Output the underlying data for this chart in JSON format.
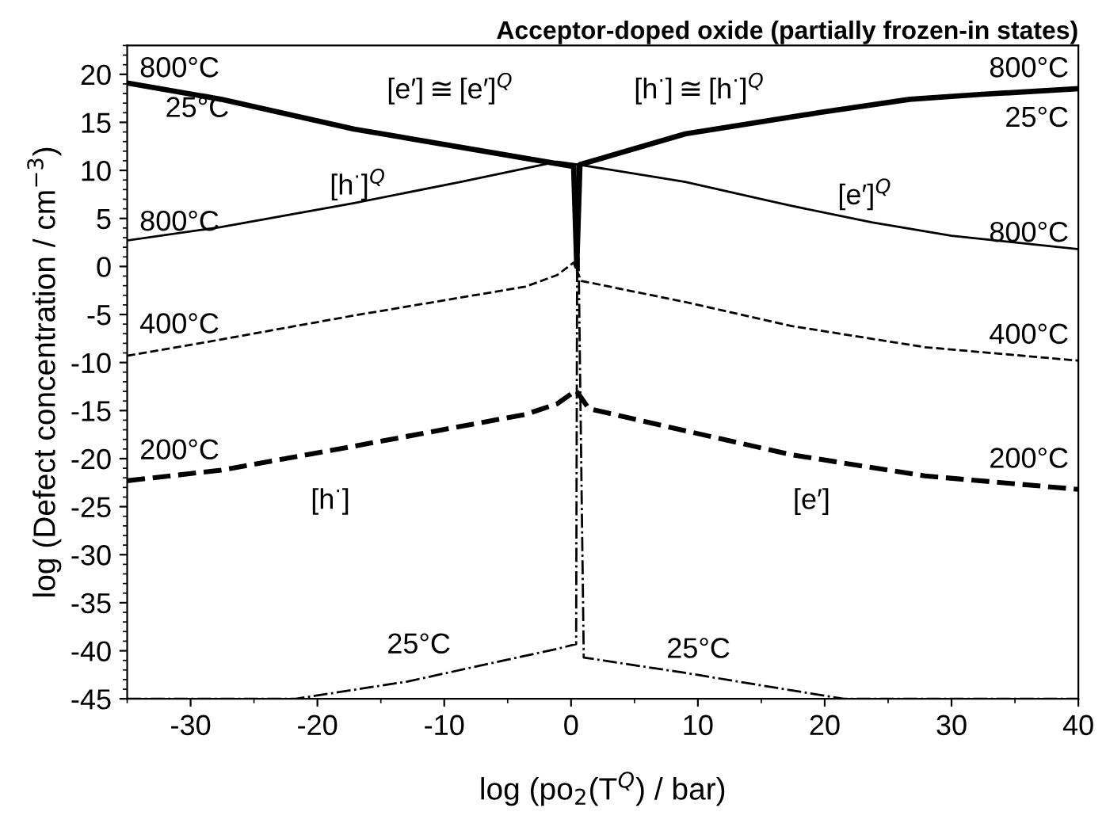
{
  "chart_data": {
    "type": "line",
    "title": "Acceptor-doped oxide (partially frozen-in states)",
    "xlabel": "log (po$_{2}$(T$^{Q}$) / bar)",
    "ylabel": "log (Defect concentration / cm$^{−3}$)",
    "xlim": [
      -35,
      40
    ],
    "ylim": [
      -45,
      23
    ],
    "xticks": [
      -30,
      -20,
      -10,
      0,
      10,
      20,
      30,
      40
    ],
    "yticks": [
      -45,
      -40,
      -35,
      -30,
      -25,
      -20,
      -15,
      -10,
      -5,
      0,
      5,
      10,
      15,
      20
    ],
    "grid": false,
    "legend": false,
    "marker": "none",
    "series": [
      {
        "color": "#000000",
        "line_style": "solid",
        "x": [
          -35,
          -27.6,
          -17.1,
          -1.1,
          0.2,
          0.45,
          0.7,
          9.0,
          19.5,
          26.7,
          32.2,
          40
        ],
        "values": [
          19.1,
          17.4,
          14.3,
          10.7,
          10.4,
          0,
          10.6,
          13.8,
          16.0,
          17.4,
          17.9,
          18.5
        ]
      },
      {
        "color": "#000000",
        "line_style": "solid",
        "x": [
          -35,
          -27.6,
          -17.1,
          -8.7,
          -1.1,
          0.6,
          9.0,
          17.4,
          23.7,
          30,
          40
        ],
        "values": [
          2.7,
          4.1,
          6.6,
          8.8,
          10.9,
          10.6,
          8.8,
          6.3,
          4.6,
          3.2,
          1.8
        ]
      },
      {
        "color": "#000000",
        "line_style": "dashed",
        "x": [
          -35,
          -27.6,
          -17.1,
          -3.6,
          -1.1,
          0.2,
          0.8,
          9.0,
          17.4,
          27.9,
          40
        ],
        "values": [
          -9.3,
          -7.6,
          -5.1,
          -2.1,
          -0.9,
          0.4,
          -1.5,
          -3.7,
          -6.2,
          -8.4,
          -9.8
        ]
      },
      {
        "color": "#000000",
        "line_style": "dashed",
        "x": [
          -35,
          -27.6,
          -17.1,
          -3.6,
          -1.1,
          0.4,
          1.4,
          9.0,
          17.4,
          27.9,
          40
        ],
        "values": [
          -22.3,
          -21.2,
          -18.7,
          -15.4,
          -14.3,
          -12.9,
          -14.8,
          -17.1,
          -19.6,
          -21.8,
          -23.2
        ]
      },
      {
        "color": "#000000",
        "line_style": "dashdot",
        "x": [
          -35,
          -21.7,
          -12.9,
          -1.1,
          0.4,
          0.5,
          1.0,
          9.0,
          21.5,
          40
        ],
        "values": [
          -45,
          -45,
          -43.2,
          -39.8,
          -39.3,
          10.6,
          -40.7,
          -42.3,
          -45,
          -45
        ]
      }
    ],
    "annotations": [
      "800°C",
      "25°C",
      "[e′]≅[e′]$^{Q}$",
      "[h$^{·}$]≅[h$^{·}$]$^{Q}$",
      "800°C",
      "25°C",
      "[h$^{·}$]$^{Q}$",
      "800°C",
      "[e′]$^{Q}$",
      "800°C",
      "400°C",
      "400°C",
      "200°C",
      "200°C",
      "[h$^{·}$]",
      "[e′]",
      "25°C",
      "25°C"
    ]
  }
}
